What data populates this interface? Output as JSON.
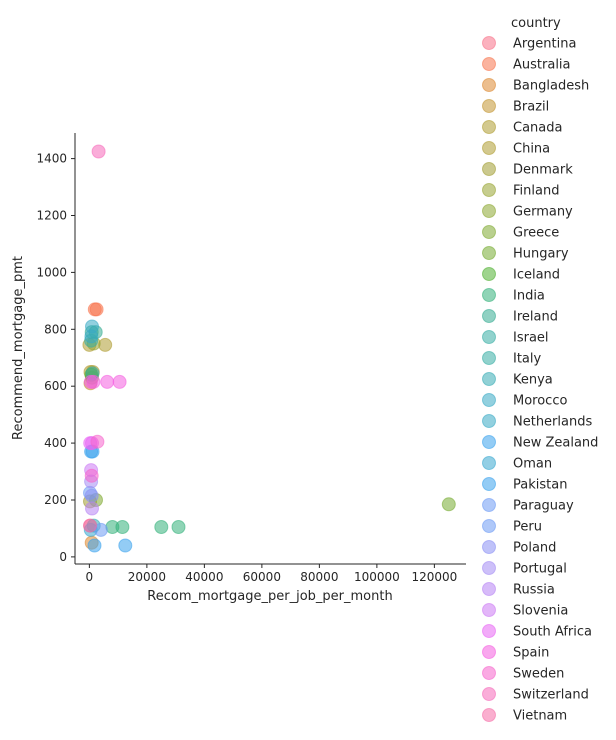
{
  "chart_data": {
    "type": "scatter",
    "title": "",
    "xlabel": "Recom_mortgage_per_job_per_month",
    "ylabel": "Recommend_mortgage_pmt",
    "xlim": [
      -5000,
      131000
    ],
    "ylim": [
      -25,
      1490
    ],
    "xticks": [
      0,
      20000,
      40000,
      60000,
      80000,
      100000,
      120000
    ],
    "xtick_labels": [
      "0",
      "20000",
      "40000",
      "60000",
      "80000",
      "100000",
      "120000"
    ],
    "yticks": [
      0,
      200,
      400,
      600,
      800,
      1000,
      1200,
      1400
    ],
    "ytick_labels": [
      "0",
      "200",
      "400",
      "600",
      "800",
      "1000",
      "1200",
      "1400"
    ],
    "grid": false,
    "legend_placement": "right",
    "legend_title": "country",
    "series": [
      {
        "name": "Argentina",
        "color": "#f77189",
        "points": [
          [
            300,
            110
          ]
        ]
      },
      {
        "name": "Australia",
        "color": "#f7754f",
        "points": [
          [
            1900,
            870
          ],
          [
            2500,
            870
          ]
        ]
      },
      {
        "name": "Bangladesh",
        "color": "#dc8932",
        "points": [
          [
            800,
            50
          ]
        ]
      },
      {
        "name": "Brazil",
        "color": "#c39532",
        "points": [
          [
            400,
            610
          ]
        ]
      },
      {
        "name": "Canada",
        "color": "#ae9d31",
        "points": [
          [
            0,
            745
          ],
          [
            5500,
            745
          ]
        ]
      },
      {
        "name": "China",
        "color": "#ae9d31",
        "points": [
          [
            400,
            650
          ],
          [
            1200,
            650
          ]
        ]
      },
      {
        "name": "Denmark",
        "color": "#a19d31",
        "points": [
          [
            200,
            195
          ]
        ]
      },
      {
        "name": "Finland",
        "color": "#97a431",
        "points": [
          [
            1500,
            750
          ]
        ]
      },
      {
        "name": "Germany",
        "color": "#8ca732",
        "points": [
          [
            900,
            630
          ]
        ]
      },
      {
        "name": "Greece",
        "color": "#80aa32",
        "points": [
          [
            2300,
            200
          ]
        ]
      },
      {
        "name": "Hungary",
        "color": "#77ab31",
        "points": [
          [
            125000,
            185
          ]
        ]
      },
      {
        "name": "Iceland",
        "color": "#50b131",
        "points": [
          [
            700,
            640
          ]
        ]
      },
      {
        "name": "India",
        "color": "#33b07a",
        "points": [
          [
            8000,
            105
          ],
          [
            11500,
            105
          ],
          [
            25000,
            105
          ],
          [
            31000,
            105
          ]
        ]
      },
      {
        "name": "Ireland",
        "color": "#35ac91",
        "points": [
          [
            800,
            790
          ],
          [
            2200,
            790
          ]
        ]
      },
      {
        "name": "Israel",
        "color": "#36ada4",
        "points": [
          [
            600,
            760
          ]
        ]
      },
      {
        "name": "Italy",
        "color": "#36ada4",
        "points": [
          [
            1100,
            645
          ]
        ]
      },
      {
        "name": "Kenya",
        "color": "#37abb4",
        "points": [
          [
            1500,
            110
          ]
        ]
      },
      {
        "name": "Morocco",
        "color": "#38a9c5",
        "points": [
          [
            700,
            775
          ]
        ]
      },
      {
        "name": "Netherlands",
        "color": "#38a9c5",
        "points": [
          [
            900,
            810
          ]
        ]
      },
      {
        "name": "New Zealand",
        "color": "#3ba3ec",
        "points": [
          [
            600,
            370
          ],
          [
            1100,
            370
          ]
        ]
      },
      {
        "name": "Oman",
        "color": "#39a7d0",
        "points": [
          [
            500,
            95
          ]
        ]
      },
      {
        "name": "Pakistan",
        "color": "#3ba3ec",
        "points": [
          [
            1800,
            40
          ],
          [
            12500,
            40
          ]
        ]
      },
      {
        "name": "Paraguay",
        "color": "#6e9bf4",
        "points": [
          [
            4000,
            95
          ]
        ]
      },
      {
        "name": "Peru",
        "color": "#6e9bf4",
        "points": [
          [
            200,
            225
          ]
        ]
      },
      {
        "name": "Poland",
        "color": "#8b90f4",
        "points": [
          [
            800,
            215
          ]
        ]
      },
      {
        "name": "Portugal",
        "color": "#a48cf4",
        "points": [
          [
            600,
            265
          ]
        ]
      },
      {
        "name": "Russia",
        "color": "#b684f4",
        "points": [
          [
            900,
            170
          ]
        ]
      },
      {
        "name": "Slovenia",
        "color": "#cc7af4",
        "points": [
          [
            600,
            305
          ]
        ]
      },
      {
        "name": "South Africa",
        "color": "#e866f4",
        "points": [
          [
            300,
            400
          ],
          [
            900,
            400
          ]
        ]
      },
      {
        "name": "Spain",
        "color": "#f45fe0",
        "points": [
          [
            500,
            615
          ],
          [
            1400,
            615
          ],
          [
            6200,
            615
          ],
          [
            10500,
            615
          ]
        ]
      },
      {
        "name": "Sweden",
        "color": "#f565cc",
        "points": [
          [
            800,
            285
          ],
          [
            2800,
            405
          ]
        ]
      },
      {
        "name": "Switzerland",
        "color": "#f56ab9",
        "points": [
          [
            3200,
            1425
          ]
        ]
      },
      {
        "name": "Vietnam",
        "color": "#f66ea7",
        "points": [
          [
            200,
            110
          ]
        ]
      }
    ]
  }
}
